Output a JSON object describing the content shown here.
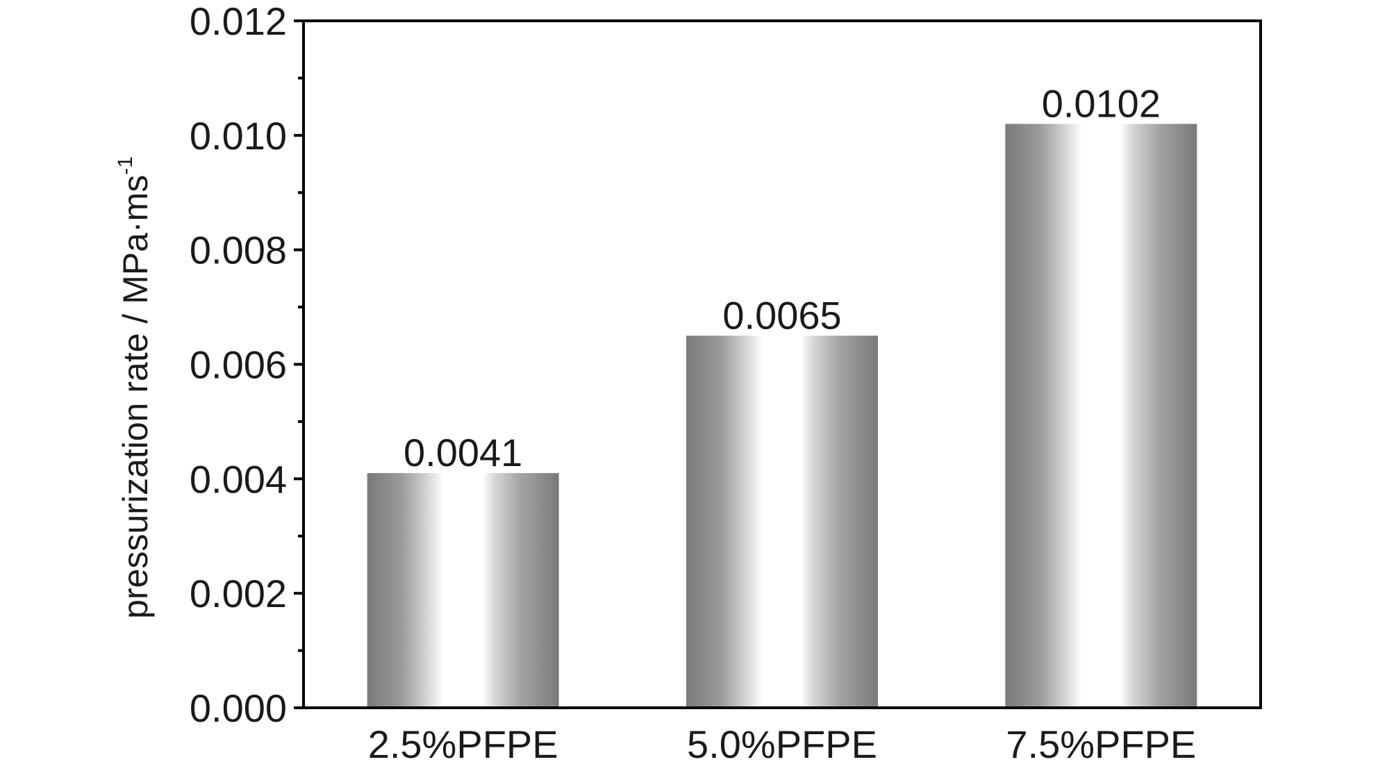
{
  "chart_data": {
    "type": "bar",
    "categories": [
      "2.5%PFPE",
      "5.0%PFPE",
      "7.5%PFPE"
    ],
    "values": [
      0.0041,
      0.0065,
      0.0102
    ],
    "data_labels": [
      "0.0041",
      "0.0065",
      "0.0102"
    ],
    "ylabel": "pressurization rate / MPa·ms",
    "ylabel_superscript": "-1",
    "xlabel": "",
    "ylim": [
      0,
      0.012
    ],
    "yticks": [
      "0.000",
      "0.002",
      "0.004",
      "0.006",
      "0.008",
      "0.010",
      "0.012"
    ],
    "ytick_values": [
      0,
      0.002,
      0.004,
      0.006,
      0.008,
      0.01,
      0.012
    ],
    "grid": false,
    "legend": "none",
    "bar_style": "cylindrical gray gradient"
  },
  "colors": {
    "axis": "#000000",
    "bar_dark": "#7f7f7f",
    "bar_mid": "#bdbdbd",
    "bar_light": "#ffffff",
    "text": "#1a1a1a"
  }
}
